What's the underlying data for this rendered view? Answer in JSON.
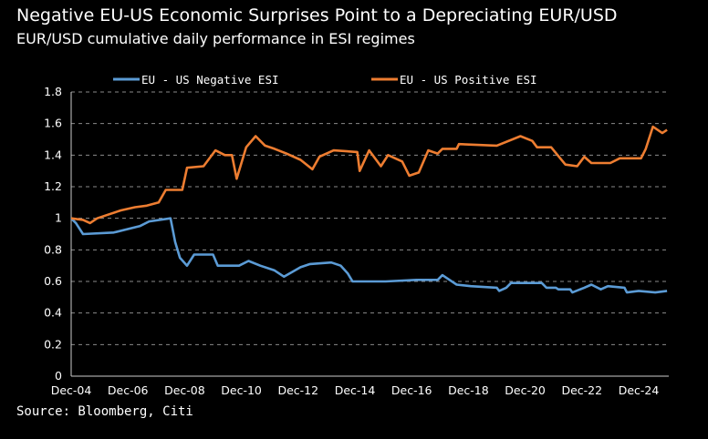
{
  "title": "Negative EU-US Economic Surprises Point to a Depreciating EUR/USD",
  "subtitle": "EUR/USD cumulative daily performance in ESI regimes",
  "source": "Source: Bloomberg, Citi",
  "chart_data": {
    "type": "line",
    "title": "Negative EU-US Economic Surprises Point to a Depreciating EUR/USD",
    "subtitle": "EUR/USD cumulative daily performance in ESI regimes",
    "ylim": [
      0,
      1.8
    ],
    "yticks": [
      "0",
      "0.2",
      "0.4",
      "0.6",
      "0.8",
      "1",
      "1.2",
      "1.4",
      "1.6",
      "1.8"
    ],
    "xticks": [
      "Dec-04",
      "Dec-06",
      "Dec-08",
      "Dec-10",
      "Dec-12",
      "Dec-14",
      "Dec-16",
      "Dec-18",
      "Dec-20",
      "Dec-22",
      "Dec-24"
    ],
    "grid": "horizontal dashed",
    "legend": "top",
    "series": [
      {
        "name": "EU - US Negative ESI",
        "color": "#5b9bd5",
        "x": [
          "2004-12",
          "2005-02",
          "2005-05",
          "2006-06",
          "2007-05",
          "2007-09",
          "2008-06",
          "2008-08",
          "2008-10",
          "2009-01",
          "2009-04",
          "2009-12",
          "2010-02",
          "2010-11",
          "2011-03",
          "2011-08",
          "2012-02",
          "2012-06",
          "2013-01",
          "2013-05",
          "2014-02",
          "2014-06",
          "2014-09",
          "2014-11",
          "2016-01",
          "2017-02",
          "2017-11",
          "2018-01",
          "2018-04",
          "2018-07",
          "2019-01",
          "2019-12",
          "2020-01",
          "2020-04",
          "2020-06",
          "2021-07",
          "2021-09",
          "2022-01",
          "2022-02",
          "2022-07",
          "2022-08",
          "2023-01",
          "2023-04",
          "2023-08",
          "2023-11",
          "2024-06",
          "2024-07",
          "2024-12",
          "2025-07",
          "2025-12"
        ],
        "y": [
          1.0,
          0.97,
          0.9,
          0.91,
          0.95,
          0.98,
          1.0,
          0.85,
          0.75,
          0.7,
          0.77,
          0.77,
          0.7,
          0.7,
          0.73,
          0.7,
          0.67,
          0.63,
          0.69,
          0.71,
          0.72,
          0.7,
          0.65,
          0.6,
          0.6,
          0.61,
          0.61,
          0.64,
          0.61,
          0.58,
          0.57,
          0.56,
          0.54,
          0.56,
          0.59,
          0.59,
          0.56,
          0.56,
          0.55,
          0.55,
          0.53,
          0.56,
          0.58,
          0.55,
          0.57,
          0.56,
          0.53,
          0.54,
          0.53,
          0.54
        ]
      },
      {
        "name": "EU - US Positive ESI",
        "color": "#ed7d31",
        "x": [
          "2004-12",
          "2005-05",
          "2005-08",
          "2005-11",
          "2006-03",
          "2006-09",
          "2007-03",
          "2007-08",
          "2008-01",
          "2008-04",
          "2008-11",
          "2009-01",
          "2009-08",
          "2010-01",
          "2010-05",
          "2010-08",
          "2010-10",
          "2011-02",
          "2011-06",
          "2011-10",
          "2012-02",
          "2012-07",
          "2013-01",
          "2013-06",
          "2013-09",
          "2014-03",
          "2015-01",
          "2015-02",
          "2015-06",
          "2015-11",
          "2016-02",
          "2016-08",
          "2016-11",
          "2017-03",
          "2017-07",
          "2017-11",
          "2018-01",
          "2018-07",
          "2018-08",
          "2019-12",
          "2020-10",
          "2021-03",
          "2021-05",
          "2021-11",
          "2022-05",
          "2022-10",
          "2023-01",
          "2023-04",
          "2023-12",
          "2024-04",
          "2025-01",
          "2025-03",
          "2025-06",
          "2025-10",
          "2025-12"
        ],
        "y": [
          1.0,
          0.99,
          0.97,
          1.0,
          1.02,
          1.05,
          1.07,
          1.08,
          1.1,
          1.18,
          1.18,
          1.32,
          1.33,
          1.43,
          1.4,
          1.4,
          1.25,
          1.45,
          1.52,
          1.46,
          1.44,
          1.41,
          1.37,
          1.31,
          1.39,
          1.43,
          1.42,
          1.3,
          1.43,
          1.33,
          1.4,
          1.36,
          1.27,
          1.29,
          1.43,
          1.41,
          1.44,
          1.44,
          1.47,
          1.46,
          1.52,
          1.49,
          1.45,
          1.45,
          1.34,
          1.33,
          1.39,
          1.35,
          1.35,
          1.38,
          1.38,
          1.44,
          1.58,
          1.54,
          1.56
        ]
      }
    ]
  }
}
